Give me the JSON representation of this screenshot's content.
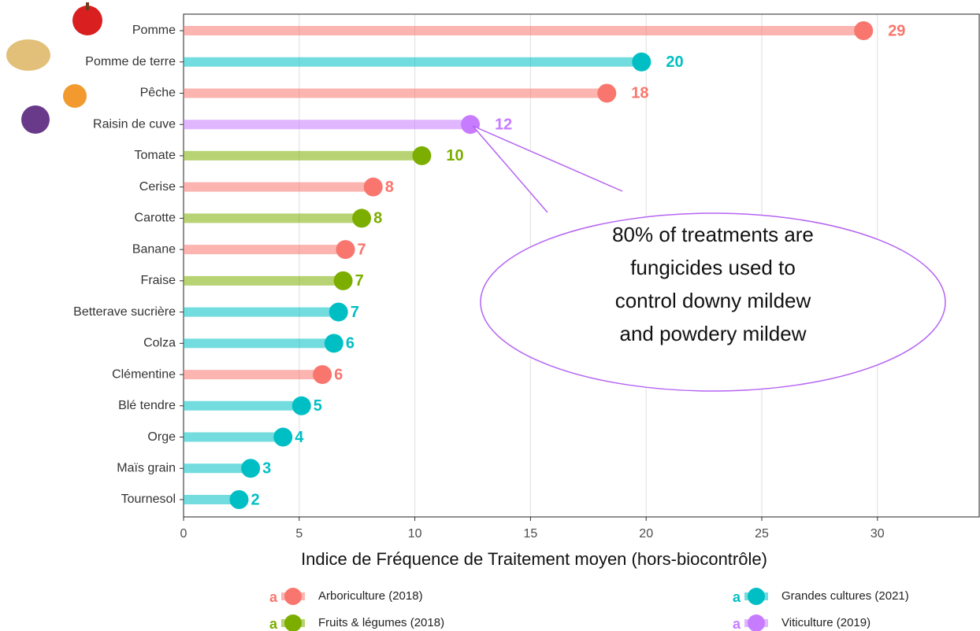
{
  "chart_data": {
    "type": "lollipop",
    "x_label": "Indice de Fréquence de Traitement moyen (hors-biocontrôle)",
    "categories": [
      "Pomme",
      "Pomme de terre",
      "Pêche",
      "Raisin de cuve",
      "Tomate",
      "Cerise",
      "Carotte",
      "Banane",
      "Fraise",
      "Betterave sucrière",
      "Colza",
      "Clémentine",
      "Blé tendre",
      "Orge",
      "Maïs grain",
      "Tournesol"
    ],
    "series": [
      {
        "name": "Arboriculture (2018)",
        "color": "#f8766d",
        "values": [
          29.4,
          null,
          18.3,
          null,
          null,
          8.2,
          null,
          7.0,
          null,
          null,
          null,
          6.0,
          null,
          null,
          null,
          null
        ],
        "value_labels": [
          "29",
          null,
          "18",
          null,
          null,
          "8",
          null,
          "7",
          null,
          null,
          null,
          "6",
          null,
          null,
          null,
          null
        ]
      },
      {
        "name": "Fruits & légumes (2018)",
        "color": "#7cae00",
        "values": [
          null,
          null,
          null,
          null,
          10.3,
          null,
          7.7,
          null,
          6.9,
          null,
          null,
          null,
          null,
          null,
          null,
          null
        ],
        "value_labels": [
          null,
          null,
          null,
          null,
          "10",
          null,
          "8",
          null,
          "7",
          null,
          null,
          null,
          null,
          null,
          null,
          null
        ]
      },
      {
        "name": "Grandes cultures (2021)",
        "color": "#00bfc4",
        "values": [
          null,
          19.8,
          null,
          null,
          null,
          null,
          null,
          null,
          null,
          6.7,
          6.5,
          null,
          5.1,
          4.3,
          2.9,
          2.4
        ],
        "value_labels": [
          null,
          "20",
          null,
          null,
          null,
          null,
          null,
          null,
          null,
          "7",
          "6",
          null,
          "5",
          "4",
          "3",
          "2"
        ]
      },
      {
        "name": "Viticulture (2019)",
        "color": "#c77cff",
        "values": [
          null,
          null,
          null,
          12.4,
          null,
          null,
          null,
          null,
          null,
          null,
          null,
          null,
          null,
          null,
          null,
          null
        ],
        "value_labels": [
          null,
          null,
          null,
          "12",
          null,
          null,
          null,
          null,
          null,
          null,
          null,
          null,
          null,
          null,
          null,
          null
        ]
      }
    ],
    "xlim": [
      0,
      34.4
    ],
    "xticks": [
      0,
      5,
      10,
      15,
      20,
      25,
      30
    ],
    "grid": true,
    "legend_key_text": "a",
    "annotation": [
      "80% of treatments are",
      "fungicides used to",
      "control downy mildew",
      "and powdery mildew"
    ]
  }
}
